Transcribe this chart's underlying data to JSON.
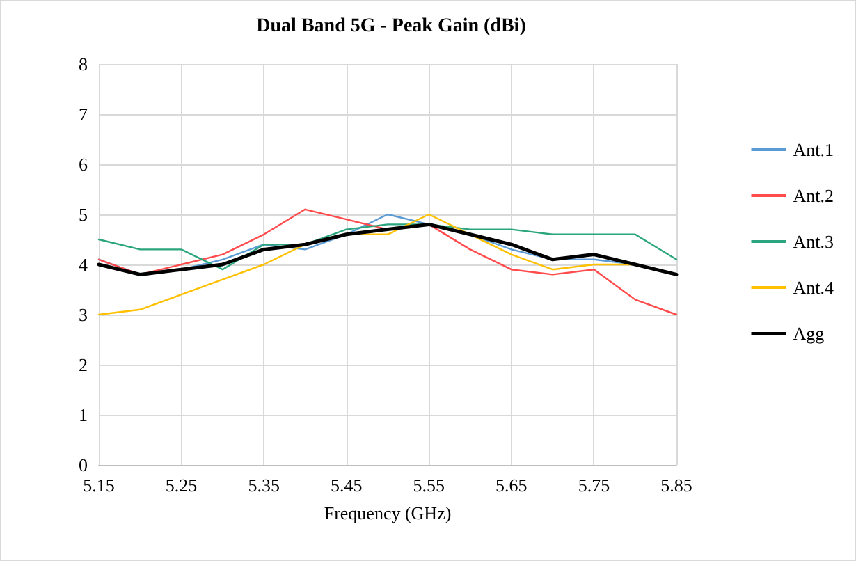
{
  "chart_data": {
    "type": "line",
    "title": "Dual Band 5G - Peak Gain (dBi)",
    "xlabel": "Frequency (GHz)",
    "x": [
      5.15,
      5.2,
      5.25,
      5.3,
      5.35,
      5.4,
      5.45,
      5.5,
      5.55,
      5.6,
      5.65,
      5.7,
      5.75,
      5.8,
      5.85
    ],
    "series": [
      {
        "name": "Ant.1",
        "color": "#5b9bd5",
        "values": [
          4.1,
          3.8,
          3.9,
          4.1,
          4.4,
          4.3,
          4.6,
          5.0,
          4.8,
          4.6,
          4.3,
          4.1,
          4.1,
          4.0,
          3.8
        ]
      },
      {
        "name": "Ant.2",
        "color": "#ff4b4b",
        "values": [
          4.1,
          3.8,
          4.0,
          4.2,
          4.6,
          5.1,
          4.9,
          4.7,
          4.8,
          4.3,
          3.9,
          3.8,
          3.9,
          3.3,
          3.0
        ]
      },
      {
        "name": "Ant.3",
        "color": "#2aa57e",
        "values": [
          4.5,
          4.3,
          4.3,
          3.9,
          4.4,
          4.4,
          4.7,
          4.8,
          4.8,
          4.7,
          4.7,
          4.6,
          4.6,
          4.6,
          4.1
        ]
      },
      {
        "name": "Ant.4",
        "color": "#ffc000",
        "values": [
          3.0,
          3.1,
          3.4,
          3.7,
          4.0,
          4.4,
          4.6,
          4.6,
          5.0,
          4.6,
          4.2,
          3.9,
          4.0,
          4.0,
          3.8
        ]
      },
      {
        "name": "Agg",
        "color": "#000000",
        "values": [
          4.0,
          3.8,
          3.9,
          4.0,
          4.3,
          4.4,
          4.6,
          4.7,
          4.8,
          4.6,
          4.4,
          4.1,
          4.2,
          4.0,
          3.8
        ]
      }
    ],
    "xlim": [
      5.15,
      5.85
    ],
    "xticks": [
      5.15,
      5.25,
      5.35,
      5.45,
      5.55,
      5.65,
      5.75,
      5.85
    ],
    "ylim": [
      0,
      8
    ],
    "yticks": [
      0,
      1,
      2,
      3,
      4,
      5,
      6,
      7,
      8
    ],
    "grid": true,
    "legend": "right",
    "marker": "none",
    "line_style": "solid"
  }
}
